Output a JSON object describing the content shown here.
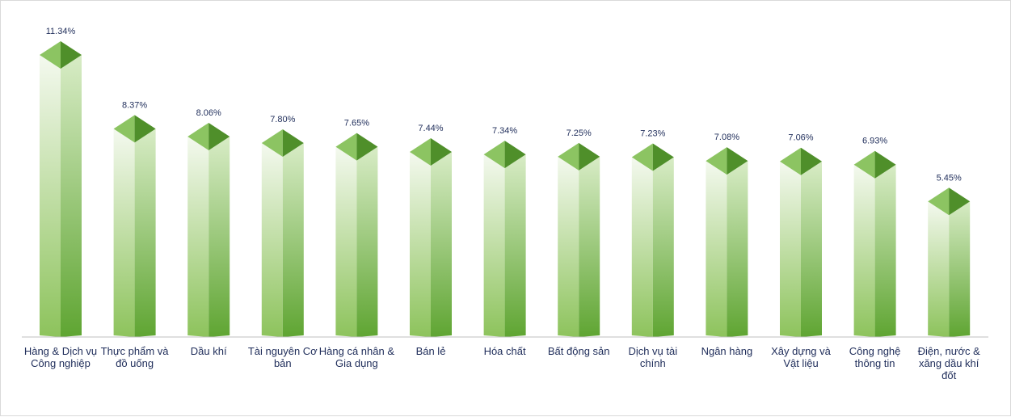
{
  "chart_data": {
    "type": "bar",
    "title": "",
    "xlabel": "",
    "ylabel": "",
    "categories": [
      "Hàng & Dịch vụ Công nghiệp",
      "Thực phẩm và đồ uống",
      "Dầu khí",
      "Tài nguyên Cơ bản",
      "Hàng cá nhân & Gia dụng",
      "Bán lẻ",
      "Hóa chất",
      "Bất động sản",
      "Dịch vụ tài chính",
      "Ngân hàng",
      "Xây dựng và Vật liệu",
      "Công nghệ thông tin",
      "Điện, nước & xăng dầu khí đốt"
    ],
    "values": [
      11.34,
      8.37,
      8.06,
      7.8,
      7.65,
      7.44,
      7.34,
      7.25,
      7.23,
      7.08,
      7.06,
      6.93,
      5.45
    ],
    "value_labels": [
      "11.34%",
      "8.37%",
      "8.06%",
      "7.80%",
      "7.65%",
      "7.44%",
      "7.34%",
      "7.25%",
      "7.23%",
      "7.08%",
      "7.06%",
      "6.93%",
      "5.45%"
    ],
    "ylim": [
      0,
      11.34
    ],
    "grid": false,
    "legend": "none",
    "style": "3d-column",
    "colors": {
      "front_top": "#f4f9ef",
      "front_bottom": "#8dc35c",
      "side_top": "#d8ecc6",
      "side_bottom": "#5fa532",
      "cap_light": "#8cc462",
      "cap_dark": "#4f8f2a",
      "axis": "#bfbfbf",
      "text": "#1f2d5a"
    }
  }
}
